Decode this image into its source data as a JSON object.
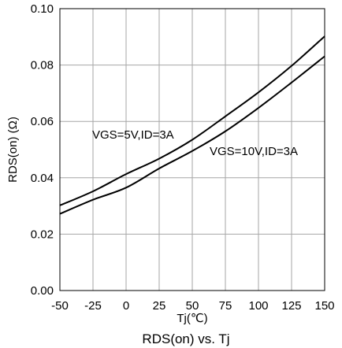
{
  "chart_data": {
    "type": "line",
    "title": "RDS(on) vs. Tj",
    "xlabel": "Tj(℃)",
    "ylabel": "RDS(on) (Ω)",
    "xlim": [
      -50,
      150
    ],
    "ylim": [
      0,
      0.1
    ],
    "x_ticks": [
      -50,
      -25,
      0,
      25,
      50,
      75,
      100,
      125,
      150
    ],
    "x_tick_labels": [
      "-50",
      "-25",
      "0",
      "25",
      "50",
      "75",
      "100",
      "125",
      "150"
    ],
    "y_ticks": [
      0,
      0.02,
      0.04,
      0.06,
      0.08,
      0.1
    ],
    "y_tick_labels": [
      "0.00",
      "0.02",
      "0.04",
      "0.06",
      "0.08",
      "0.10"
    ],
    "grid": true,
    "series": [
      {
        "name": "VGS=5V,ID=3A",
        "x": [
          -50,
          -25,
          0,
          25,
          50,
          75,
          100,
          125,
          150
        ],
        "values": [
          0.0302,
          0.0352,
          0.0413,
          0.0468,
          0.0535,
          0.0618,
          0.0703,
          0.0797,
          0.0902
        ]
      },
      {
        "name": "VGS=10V,ID=3A",
        "x": [
          -50,
          -25,
          0,
          25,
          50,
          75,
          100,
          125,
          150
        ],
        "values": [
          0.0272,
          0.0322,
          0.0365,
          0.0433,
          0.0495,
          0.0565,
          0.0648,
          0.0738,
          0.0831
        ]
      }
    ],
    "annotations": [
      {
        "text": "VGS=5V,ID=3A",
        "series": 0
      },
      {
        "text": "VGS=10V,ID=3A",
        "series": 1
      }
    ],
    "line_color": "#000000",
    "grid_color": "#a6a6a6"
  }
}
